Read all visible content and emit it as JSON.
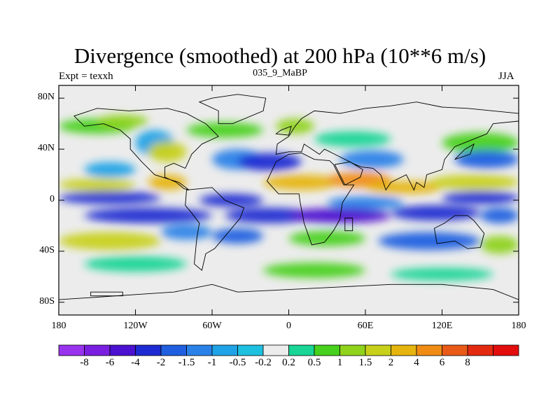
{
  "chart_data": {
    "type": "heatmap",
    "title": "Divergence (smoothed) at 200 hPa (10**6 m/s)",
    "left_label": "Expt = texxh",
    "subtitle": "035_9_MaBP",
    "right_label": "JJA",
    "xlabels": [
      "180",
      "120W",
      "60W",
      "0",
      "60E",
      "120E",
      "180"
    ],
    "xticks": [
      -180,
      -120,
      -60,
      0,
      60,
      120,
      180
    ],
    "ylabels": [
      "80N",
      "40N",
      "0",
      "40S",
      "80S"
    ],
    "yticks": [
      80,
      40,
      0,
      -40,
      -80
    ],
    "xlim": [
      -180,
      180
    ],
    "ylim": [
      -90,
      90
    ],
    "colorbar_labels": [
      "-8",
      "-6",
      "-4",
      "-2",
      "-1.5",
      "-1",
      "-0.5",
      "-0.2",
      "0.2",
      "0.5",
      "1",
      "1.5",
      "2",
      "4",
      "6",
      "8"
    ],
    "colorbar_colors": [
      "#9933ee",
      "#7a1fe0",
      "#4b10d0",
      "#1e2bd2",
      "#1f5fe0",
      "#2a82e8",
      "#1fa3e6",
      "#1ec0e0",
      "#ececec",
      "#19d596",
      "#48d11c",
      "#8fd31c",
      "#c8d11a",
      "#e6b40f",
      "#f08c14",
      "#e95a18",
      "#e32a10",
      "#e30d0d"
    ],
    "field_bands": [
      {
        "lat": 62,
        "anomaly": 1.2
      },
      {
        "lat": 32,
        "anomaly": -1.5
      },
      {
        "lat": 12,
        "anomaly": 3.5
      },
      {
        "lat": 0,
        "anomaly": -2.5
      },
      {
        "lat": -10,
        "anomaly": -3.0
      },
      {
        "lat": -32,
        "anomaly": 1.8
      },
      {
        "lat": -55,
        "anomaly": 0.8
      }
    ]
  }
}
